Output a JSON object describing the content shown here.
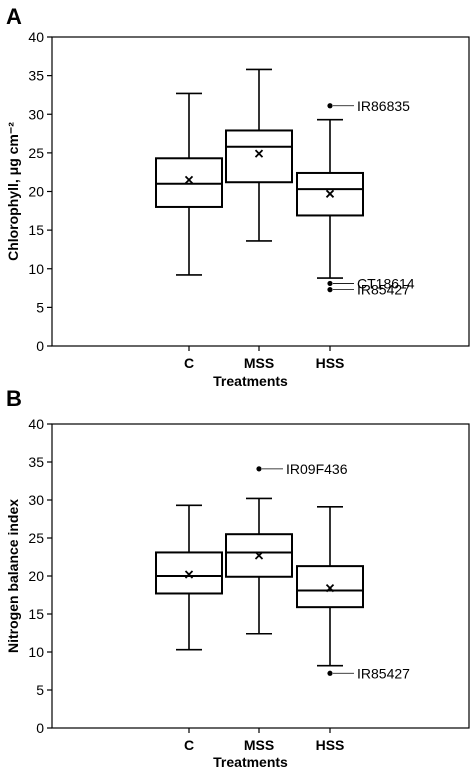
{
  "chart_data": [
    {
      "panel": "A",
      "type": "box",
      "xlabel": "Treatments",
      "ylabel": "Chlorophyll, μg cm⁻²",
      "ylim": [
        0,
        40
      ],
      "yticks": [
        0,
        5,
        10,
        15,
        20,
        25,
        30,
        35,
        40
      ],
      "categories": [
        "C",
        "MSS",
        "HSS"
      ],
      "boxes": [
        {
          "category": "C",
          "min": 9.2,
          "q1": 18.0,
          "median": 21.0,
          "q3": 24.3,
          "max": 32.7,
          "mean": 21.5
        },
        {
          "category": "MSS",
          "min": 13.6,
          "q1": 21.2,
          "median": 25.8,
          "q3": 27.9,
          "max": 35.8,
          "mean": 24.9
        },
        {
          "category": "HSS",
          "min": 8.8,
          "q1": 16.9,
          "median": 20.3,
          "q3": 22.4,
          "max": 29.3,
          "mean": 19.7
        }
      ],
      "outliers": [
        {
          "category": "HSS",
          "value": 31.1,
          "label": "IR86835"
        },
        {
          "category": "HSS",
          "value": 8.1,
          "label": "CT18614"
        },
        {
          "category": "HSS",
          "value": 7.3,
          "label": "IR85427"
        }
      ]
    },
    {
      "panel": "B",
      "type": "box",
      "xlabel": "Treatments",
      "ylabel": "Nitrogen balance index",
      "ylim": [
        0,
        40
      ],
      "yticks": [
        0,
        5,
        10,
        15,
        20,
        25,
        30,
        35,
        40
      ],
      "categories": [
        "C",
        "MSS",
        "HSS"
      ],
      "boxes": [
        {
          "category": "C",
          "min": 10.3,
          "q1": 17.7,
          "median": 20.0,
          "q3": 23.1,
          "max": 29.3,
          "mean": 20.2
        },
        {
          "category": "MSS",
          "min": 12.4,
          "q1": 19.9,
          "median": 23.1,
          "q3": 25.5,
          "max": 30.2,
          "mean": 22.7
        },
        {
          "category": "HSS",
          "min": 8.2,
          "q1": 15.9,
          "median": 18.1,
          "q3": 21.3,
          "max": 29.1,
          "mean": 18.4
        }
      ],
      "outliers": [
        {
          "category": "MSS",
          "value": 34.1,
          "label": "IR09F436"
        },
        {
          "category": "HSS",
          "value": 7.2,
          "label": "IR85427"
        }
      ]
    }
  ]
}
